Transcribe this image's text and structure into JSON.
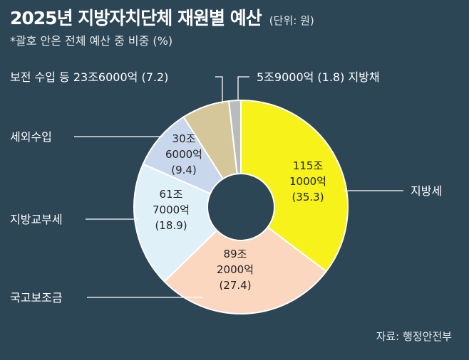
{
  "header": {
    "title": "2025년 지방자치단체 재원별 예산",
    "unit": "(단위: 원)",
    "subtitle": "*괄호 안은 전체 예산 중 비중 (%)"
  },
  "source": "자료: 행정안전부",
  "colors": {
    "background": "#2c4656",
    "지방세": "#f6f21a",
    "국고보조금": "#fbd7c0",
    "지방교부세": "#dff0f8",
    "세외수입": "#c9d7ed",
    "보전 수입 등": "#d6c79a",
    "지방채": "#b9bcbd"
  },
  "chart_data": {
    "type": "pie",
    "donut": true,
    "slices": [
      {
        "name": "지방세",
        "amount": "115조 1000억",
        "amount_line1": "115조",
        "amount_line2": "1000억",
        "share": 35.3,
        "share_label": "(35.3)"
      },
      {
        "name": "국고보조금",
        "amount": "89조 2000억",
        "amount_line1": "89조",
        "amount_line2": "2000억",
        "share": 27.4,
        "share_label": "(27.4)"
      },
      {
        "name": "지방교부세",
        "amount": "61조 7000억",
        "amount_line1": "61조",
        "amount_line2": "7000억",
        "share": 18.9,
        "share_label": "(18.9)"
      },
      {
        "name": "세외수입",
        "amount": "30조 6000억",
        "amount_line1": "30조",
        "amount_line2": "6000억",
        "share": 9.4,
        "share_label": "(9.4)"
      },
      {
        "name": "보전 수입 등",
        "amount": "23조6000억",
        "share": 7.2,
        "outside_label": "보전 수입 등 23조6000억 (7.2)"
      },
      {
        "name": "지방채",
        "amount": "5조9000억",
        "share": 1.8,
        "outside_label": "5조9000억 (1.8)  지방채"
      }
    ]
  }
}
